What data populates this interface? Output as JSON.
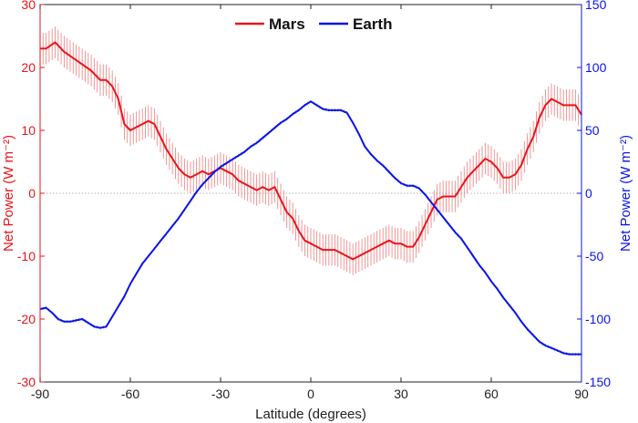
{
  "chart_data": {
    "type": "line",
    "xlabel": "Latitude (degrees)",
    "ylabel_left": "Net Power (W m⁻²)",
    "ylabel_right": "Net Power (W m⁻²)",
    "xlim": [
      -90,
      90
    ],
    "ylim_left": [
      -30,
      30
    ],
    "ylim_right": [
      -150,
      150
    ],
    "xticks": [
      -90,
      -60,
      -30,
      0,
      30,
      60,
      90
    ],
    "yticks_left": [
      -30,
      -20,
      -10,
      0,
      10,
      20,
      30
    ],
    "yticks_right": [
      -150,
      -100,
      -50,
      0,
      50,
      100,
      150
    ],
    "grid": false,
    "zero_line": true,
    "legend_position": "top-center",
    "colors": {
      "mars": "#e8151b",
      "earth": "#0a14e6",
      "mars_error": "#f08a8a",
      "earth_error": "#6f7bff"
    },
    "series": [
      {
        "name": "Mars",
        "axis": "left",
        "error_bar": 2.5,
        "x": [
          -90,
          -88,
          -85,
          -82,
          -79,
          -76,
          -73,
          -70,
          -68,
          -66,
          -64,
          -62,
          -60,
          -58,
          -56,
          -54,
          -52,
          -50,
          -48,
          -46,
          -44,
          -42,
          -40,
          -38,
          -36,
          -34,
          -32,
          -30,
          -28,
          -26,
          -24,
          -22,
          -20,
          -18,
          -16,
          -14,
          -12,
          -10,
          -8,
          -6,
          -4,
          -2,
          0,
          2,
          4,
          6,
          8,
          10,
          12,
          14,
          16,
          18,
          20,
          22,
          24,
          26,
          28,
          30,
          32,
          34,
          36,
          38,
          40,
          42,
          44,
          46,
          48,
          50,
          52,
          54,
          56,
          58,
          60,
          62,
          64,
          66,
          68,
          70,
          72,
          74,
          76,
          78,
          80,
          82,
          84,
          86,
          88,
          90
        ],
        "y": [
          23,
          23,
          24,
          22.5,
          21.5,
          20.5,
          19.5,
          18,
          18,
          17,
          15,
          11,
          10,
          10.5,
          11,
          11.5,
          11,
          9,
          7,
          5.5,
          4,
          3,
          2.5,
          3,
          3.5,
          3,
          3.5,
          4,
          3.5,
          3,
          2,
          1.5,
          1,
          0.5,
          1,
          0.5,
          1,
          -1,
          -3,
          -4,
          -6,
          -7.5,
          -8,
          -8.5,
          -9,
          -9,
          -9,
          -9.5,
          -10,
          -10.5,
          -10,
          -9.5,
          -9,
          -8.5,
          -8,
          -7.5,
          -8,
          -8,
          -8.5,
          -8.5,
          -7,
          -5,
          -3,
          -1,
          -0.5,
          -0.5,
          -0.5,
          1,
          2.5,
          3.5,
          4.5,
          5.5,
          5,
          4,
          2.5,
          2.5,
          3,
          4.5,
          7,
          9,
          12,
          14,
          15,
          14.5,
          14,
          14,
          14,
          12.5
        ]
      },
      {
        "name": "Earth",
        "axis": "right",
        "error_bar": 1.2,
        "x": [
          -90,
          -88,
          -86,
          -84,
          -82,
          -80,
          -78,
          -76,
          -74,
          -72,
          -70,
          -68,
          -66,
          -64,
          -62,
          -60,
          -58,
          -56,
          -54,
          -52,
          -50,
          -48,
          -46,
          -44,
          -42,
          -40,
          -38,
          -36,
          -34,
          -32,
          -30,
          -28,
          -26,
          -24,
          -22,
          -20,
          -18,
          -16,
          -14,
          -12,
          -10,
          -8,
          -6,
          -4,
          -2,
          0,
          2,
          4,
          6,
          8,
          10,
          12,
          14,
          16,
          18,
          20,
          22,
          24,
          26,
          28,
          30,
          32,
          34,
          36,
          38,
          40,
          42,
          44,
          46,
          48,
          50,
          52,
          54,
          56,
          58,
          60,
          62,
          64,
          66,
          68,
          70,
          72,
          74,
          76,
          78,
          80,
          82,
          84,
          86,
          88,
          90
        ],
        "y": [
          -92,
          -91,
          -95,
          -100,
          -102,
          -102,
          -101,
          -100,
          -103,
          -106,
          -107,
          -106,
          -98,
          -90,
          -82,
          -72,
          -64,
          -56,
          -50,
          -44,
          -38,
          -32,
          -26,
          -20,
          -13,
          -6,
          1,
          7,
          12,
          17,
          21,
          24,
          27,
          30,
          33,
          37,
          40,
          44,
          48,
          52,
          56,
          59,
          63,
          66,
          70,
          73,
          70,
          67,
          66,
          66,
          66,
          64,
          56,
          47,
          37,
          31,
          26,
          22,
          17,
          12,
          8,
          6,
          6,
          4,
          -1,
          -7,
          -13,
          -19,
          -25,
          -31,
          -36,
          -43,
          -50,
          -57,
          -63,
          -70,
          -76,
          -83,
          -89,
          -95,
          -102,
          -108,
          -113,
          -118,
          -121,
          -123,
          -125,
          -127,
          -128,
          -128,
          -128
        ]
      }
    ]
  }
}
